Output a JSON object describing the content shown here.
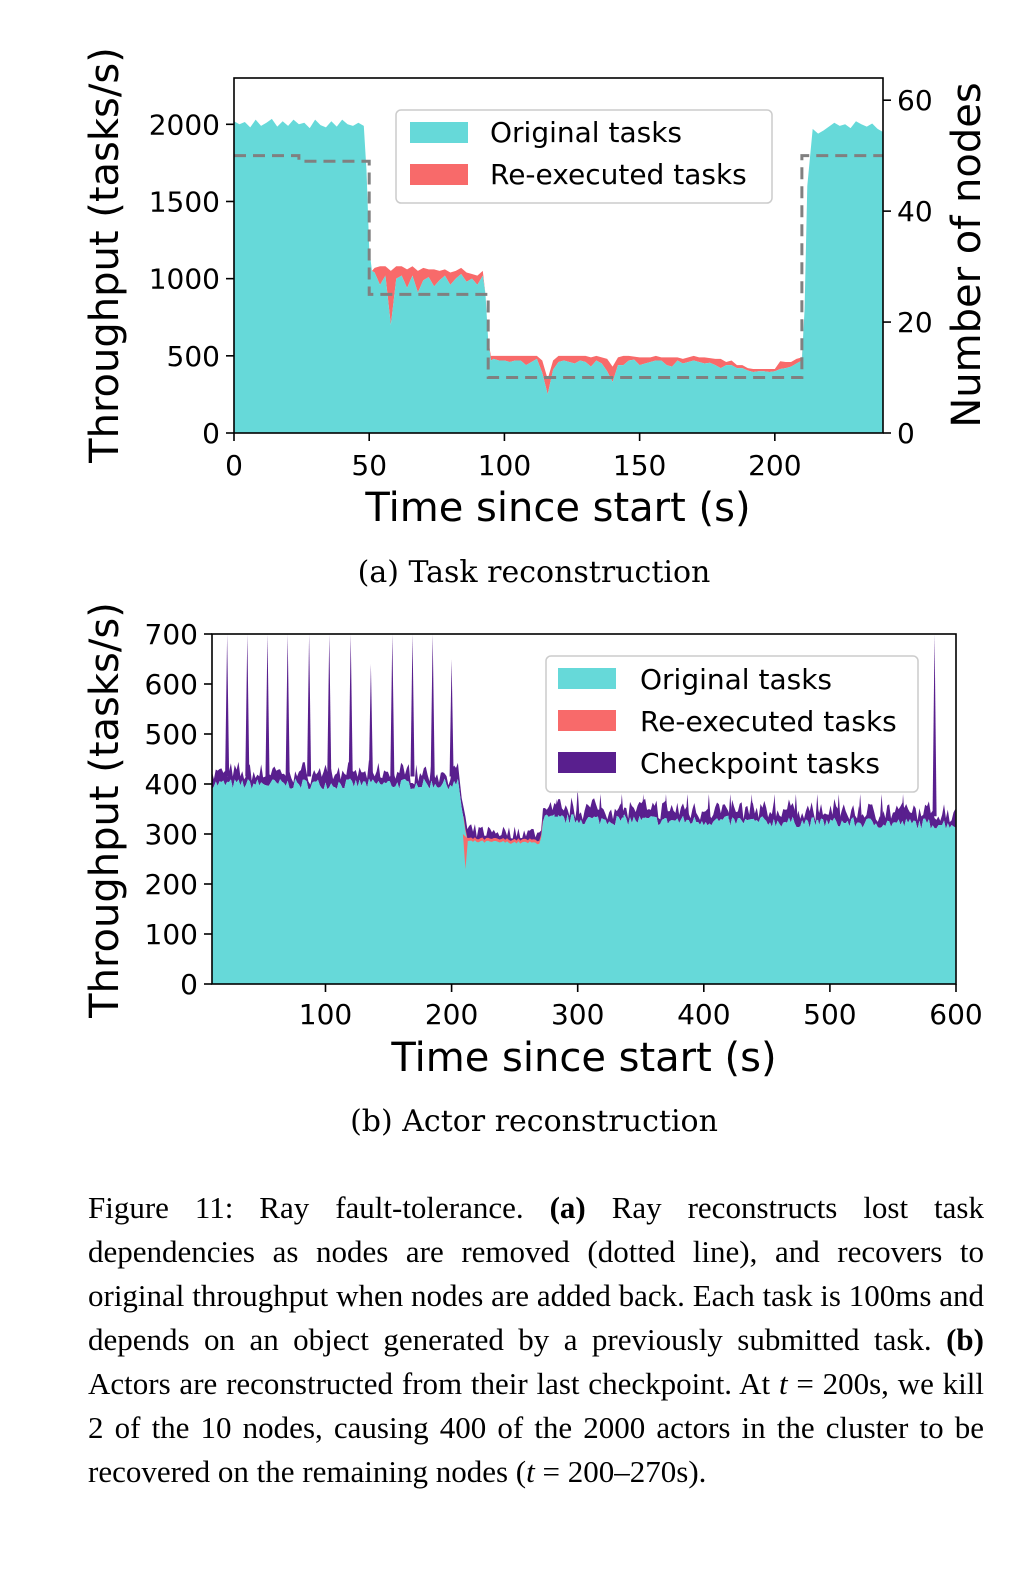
{
  "colors": {
    "original": "#66d9d9",
    "reexecuted": "#f86a6a",
    "checkpoint": "#591f8e",
    "nodes_line": "#808080"
  },
  "chart_data": [
    {
      "type": "area",
      "subcaption": "(a) Task reconstruction",
      "xlabel": "Time since start (s)",
      "ylabel": "Throughput (tasks/s)",
      "y2label": "Number of nodes",
      "xlim": [
        0,
        240
      ],
      "ylim": [
        0,
        2300
      ],
      "y2lim": [
        0,
        64
      ],
      "xticks": [
        0,
        50,
        100,
        150,
        200
      ],
      "yticks": [
        0,
        500,
        1000,
        1500,
        2000
      ],
      "y2ticks": [
        0,
        20,
        40,
        60
      ],
      "legend": {
        "position": "top-right",
        "entries": [
          "Original tasks",
          "Re-executed tasks"
        ]
      },
      "x": [
        0,
        2,
        4,
        6,
        8,
        10,
        12,
        14,
        16,
        18,
        20,
        22,
        24,
        26,
        28,
        30,
        32,
        34,
        36,
        38,
        40,
        42,
        44,
        46,
        48,
        49,
        50,
        51,
        52,
        54,
        56,
        58,
        60,
        62,
        64,
        66,
        68,
        70,
        72,
        74,
        76,
        78,
        80,
        82,
        84,
        86,
        88,
        90,
        92,
        93,
        94,
        95,
        96,
        98,
        100,
        102,
        104,
        106,
        108,
        110,
        112,
        114,
        116,
        118,
        120,
        122,
        124,
        126,
        128,
        130,
        132,
        134,
        136,
        138,
        140,
        142,
        144,
        146,
        148,
        150,
        152,
        154,
        156,
        158,
        160,
        162,
        164,
        166,
        168,
        170,
        172,
        174,
        176,
        178,
        180,
        182,
        184,
        186,
        188,
        190,
        192,
        194,
        196,
        198,
        200,
        202,
        204,
        206,
        208,
        210,
        211,
        212,
        214,
        216,
        218,
        220,
        222,
        224,
        226,
        228,
        230,
        232,
        234,
        236,
        238,
        240
      ],
      "series": [
        {
          "name": "Original tasks",
          "values": [
            2020,
            2000,
            2015,
            1980,
            2030,
            1990,
            2010,
            2035,
            1985,
            2020,
            1990,
            2030,
            2000,
            2010,
            1975,
            2030,
            1995,
            1980,
            2020,
            1985,
            2030,
            2000,
            1990,
            2010,
            1990,
            1700,
            1200,
            1050,
            1040,
            960,
            1020,
            700,
            1000,
            1020,
            940,
            1020,
            910,
            990,
            1010,
            950,
            990,
            1020,
            960,
            1000,
            1030,
            980,
            1000,
            960,
            1020,
            900,
            600,
            470,
            480,
            470,
            470,
            460,
            470,
            470,
            440,
            460,
            480,
            390,
            250,
            410,
            460,
            470,
            460,
            450,
            470,
            460,
            430,
            470,
            450,
            400,
            330,
            440,
            440,
            470,
            475,
            440,
            450,
            460,
            470,
            470,
            440,
            430,
            470,
            450,
            460,
            470,
            460,
            450,
            455,
            440,
            420,
            440,
            440,
            420,
            420,
            405,
            395,
            400,
            400,
            395,
            400,
            415,
            420,
            430,
            450,
            470,
            800,
            1600,
            1970,
            1940,
            1960,
            1985,
            2010,
            1990,
            2000,
            1975,
            2020,
            2000,
            1985,
            2005,
            1970,
            1950
          ]
        },
        {
          "name": "Re-executed tasks",
          "values": [
            0,
            0,
            0,
            0,
            0,
            0,
            0,
            0,
            0,
            0,
            0,
            0,
            0,
            0,
            0,
            0,
            0,
            0,
            0,
            0,
            0,
            0,
            0,
            0,
            0,
            0,
            0,
            0,
            30,
            120,
            60,
            350,
            80,
            60,
            120,
            60,
            140,
            80,
            50,
            110,
            60,
            40,
            80,
            50,
            40,
            60,
            30,
            60,
            30,
            0,
            0,
            30,
            20,
            30,
            30,
            40,
            30,
            30,
            60,
            40,
            20,
            80,
            100,
            60,
            40,
            30,
            40,
            50,
            30,
            40,
            60,
            30,
            40,
            80,
            100,
            50,
            60,
            30,
            20,
            50,
            40,
            30,
            30,
            20,
            50,
            60,
            20,
            30,
            30,
            30,
            30,
            40,
            30,
            40,
            60,
            20,
            30,
            20,
            20,
            15,
            20,
            15,
            15,
            20,
            15,
            50,
            40,
            30,
            30,
            20,
            0,
            0,
            0,
            0,
            0,
            0,
            0,
            0,
            0,
            0,
            0,
            0,
            0,
            0,
            0,
            0
          ]
        },
        {
          "name": "Number of nodes",
          "axis": "right",
          "style": "dashed",
          "x": [
            0,
            24,
            24,
            50,
            50,
            94,
            94,
            210,
            210,
            240
          ],
          "values": [
            50,
            50,
            49,
            49,
            25,
            25,
            10,
            10,
            50,
            50
          ]
        }
      ]
    },
    {
      "type": "area",
      "subcaption": "(b) Actor reconstruction",
      "xlabel": "Time since start (s)",
      "ylabel": "Throughput (tasks/s)",
      "xlim": [
        10,
        600
      ],
      "ylim": [
        0,
        700
      ],
      "xticks": [
        100,
        200,
        300,
        400,
        500,
        600
      ],
      "yticks": [
        0,
        100,
        200,
        300,
        400,
        500,
        600,
        700
      ],
      "legend": {
        "position": "top-right",
        "entries": [
          "Original tasks",
          "Re-executed tasks",
          "Checkpoint tasks"
        ]
      },
      "original_level": [
        {
          "x": 10,
          "y": 400
        },
        {
          "x": 205,
          "y": 400
        },
        {
          "x": 209,
          "y": 340
        },
        {
          "x": 212,
          "y": 285
        },
        {
          "x": 270,
          "y": 282
        },
        {
          "x": 273,
          "y": 330
        },
        {
          "x": 600,
          "y": 320
        }
      ],
      "reexecuted_window": [
        209,
        273
      ],
      "checkpoint_spikes": [
        {
          "x": 22,
          "y": 700
        },
        {
          "x": 38,
          "y": 700
        },
        {
          "x": 54,
          "y": 700
        },
        {
          "x": 70,
          "y": 700
        },
        {
          "x": 87,
          "y": 700
        },
        {
          "x": 103,
          "y": 700
        },
        {
          "x": 120,
          "y": 700
        },
        {
          "x": 136,
          "y": 640
        },
        {
          "x": 153,
          "y": 700
        },
        {
          "x": 169,
          "y": 700
        },
        {
          "x": 185,
          "y": 700
        },
        {
          "x": 200,
          "y": 650
        },
        {
          "x": 583,
          "y": 700
        }
      ],
      "checkpoint_minor_spikes": [
        {
          "x": 283,
          "y": 370
        },
        {
          "x": 300,
          "y": 390
        },
        {
          "x": 318,
          "y": 380
        },
        {
          "x": 335,
          "y": 380
        },
        {
          "x": 352,
          "y": 380
        },
        {
          "x": 370,
          "y": 380
        },
        {
          "x": 387,
          "y": 380
        },
        {
          "x": 404,
          "y": 380
        },
        {
          "x": 421,
          "y": 380
        },
        {
          "x": 438,
          "y": 380
        },
        {
          "x": 456,
          "y": 380
        },
        {
          "x": 473,
          "y": 380
        },
        {
          "x": 490,
          "y": 380
        },
        {
          "x": 507,
          "y": 380
        },
        {
          "x": 524,
          "y": 380
        },
        {
          "x": 541,
          "y": 380
        },
        {
          "x": 558,
          "y": 380
        }
      ]
    }
  ],
  "caption": {
    "label": "Figure 11:",
    "intro": " Ray fault-tolerance. ",
    "a_marker": "(a)",
    "a_text": " Ray reconstructs lost task dependencies as nodes are removed (dotted line), and recovers to original throughput when nodes are added back. Each task is 100ms and depends on an object generated by a previously submitted task. ",
    "b_marker": "(b)",
    "b_text1": " Actors are reconstructed from their last checkpoint. At ",
    "t_var": "t",
    "b_text2": " = 200s, we kill 2 of the 10 nodes, causing 400 of the 2000 actors in the cluster to be recovered on the remaining nodes (",
    "t_var2": "t",
    "b_text3": " = 200–270s)."
  }
}
